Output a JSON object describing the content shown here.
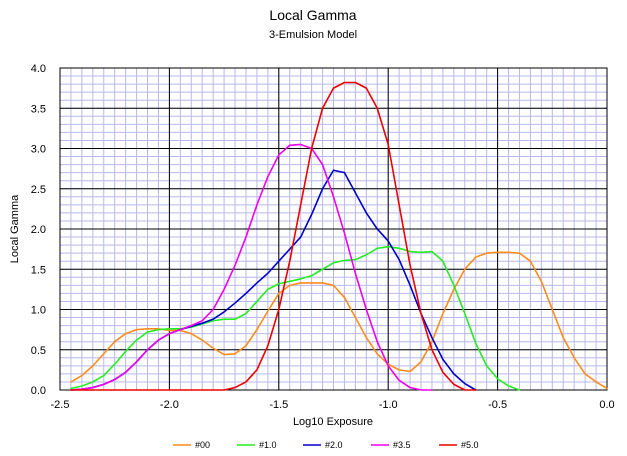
{
  "chart_data": {
    "type": "line",
    "title": "Local Gamma",
    "subtitle": "3-Emulsion Model",
    "xlabel": "Log10 Exposure",
    "ylabel": "Local Gamma",
    "xlim": [
      -2.5,
      0.0
    ],
    "ylim": [
      0.0,
      4.0
    ],
    "x_ticks": [
      "-2.5",
      "-2.0",
      "-1.5",
      "-1.0",
      "-0.5",
      "0.0"
    ],
    "y_ticks": [
      "0.0",
      "0.5",
      "1.0",
      "1.5",
      "2.0",
      "2.5",
      "3.0",
      "3.5",
      "4.0"
    ],
    "grid": true,
    "legend_position": "bottom",
    "series": [
      {
        "name": "#00",
        "color": "#ff8c1a",
        "points": [
          [
            -2.45,
            0.1
          ],
          [
            -2.4,
            0.18
          ],
          [
            -2.35,
            0.3
          ],
          [
            -2.3,
            0.45
          ],
          [
            -2.25,
            0.6
          ],
          [
            -2.2,
            0.7
          ],
          [
            -2.15,
            0.75
          ],
          [
            -2.1,
            0.76
          ],
          [
            -2.05,
            0.76
          ],
          [
            -2.0,
            0.74
          ],
          [
            -1.95,
            0.74
          ],
          [
            -1.9,
            0.7
          ],
          [
            -1.85,
            0.62
          ],
          [
            -1.8,
            0.52
          ],
          [
            -1.75,
            0.44
          ],
          [
            -1.7,
            0.45
          ],
          [
            -1.65,
            0.55
          ],
          [
            -1.6,
            0.75
          ],
          [
            -1.55,
            0.98
          ],
          [
            -1.5,
            1.2
          ],
          [
            -1.45,
            1.3
          ],
          [
            -1.4,
            1.33
          ],
          [
            -1.35,
            1.33
          ],
          [
            -1.3,
            1.33
          ],
          [
            -1.25,
            1.3
          ],
          [
            -1.2,
            1.15
          ],
          [
            -1.15,
            0.9
          ],
          [
            -1.1,
            0.65
          ],
          [
            -1.05,
            0.45
          ],
          [
            -1.0,
            0.32
          ],
          [
            -0.95,
            0.25
          ],
          [
            -0.9,
            0.23
          ],
          [
            -0.85,
            0.35
          ],
          [
            -0.8,
            0.6
          ],
          [
            -0.75,
            0.95
          ],
          [
            -0.7,
            1.25
          ],
          [
            -0.65,
            1.5
          ],
          [
            -0.6,
            1.65
          ],
          [
            -0.55,
            1.7
          ],
          [
            -0.5,
            1.71
          ],
          [
            -0.45,
            1.71
          ],
          [
            -0.4,
            1.7
          ],
          [
            -0.35,
            1.6
          ],
          [
            -0.3,
            1.35
          ],
          [
            -0.25,
            1.0
          ],
          [
            -0.2,
            0.65
          ],
          [
            -0.15,
            0.4
          ],
          [
            -0.1,
            0.2
          ],
          [
            -0.05,
            0.1
          ],
          [
            0.0,
            0.02
          ]
        ]
      },
      {
        "name": "#1.0",
        "color": "#22ee22",
        "points": [
          [
            -2.45,
            0.02
          ],
          [
            -2.4,
            0.05
          ],
          [
            -2.35,
            0.1
          ],
          [
            -2.3,
            0.18
          ],
          [
            -2.25,
            0.32
          ],
          [
            -2.2,
            0.48
          ],
          [
            -2.15,
            0.62
          ],
          [
            -2.1,
            0.72
          ],
          [
            -2.05,
            0.75
          ],
          [
            -2.0,
            0.76
          ],
          [
            -1.95,
            0.76
          ],
          [
            -1.9,
            0.78
          ],
          [
            -1.85,
            0.82
          ],
          [
            -1.8,
            0.86
          ],
          [
            -1.75,
            0.88
          ],
          [
            -1.7,
            0.88
          ],
          [
            -1.65,
            0.95
          ],
          [
            -1.6,
            1.1
          ],
          [
            -1.55,
            1.25
          ],
          [
            -1.5,
            1.32
          ],
          [
            -1.45,
            1.35
          ],
          [
            -1.4,
            1.38
          ],
          [
            -1.35,
            1.42
          ],
          [
            -1.3,
            1.5
          ],
          [
            -1.25,
            1.58
          ],
          [
            -1.2,
            1.61
          ],
          [
            -1.15,
            1.62
          ],
          [
            -1.1,
            1.68
          ],
          [
            -1.05,
            1.76
          ],
          [
            -1.0,
            1.78
          ],
          [
            -0.95,
            1.76
          ],
          [
            -0.9,
            1.72
          ],
          [
            -0.85,
            1.71
          ],
          [
            -0.8,
            1.72
          ],
          [
            -0.75,
            1.6
          ],
          [
            -0.7,
            1.3
          ],
          [
            -0.65,
            0.95
          ],
          [
            -0.6,
            0.58
          ],
          [
            -0.55,
            0.3
          ],
          [
            -0.5,
            0.14
          ],
          [
            -0.45,
            0.05
          ],
          [
            -0.4,
            0.0
          ]
        ]
      },
      {
        "name": "#2.0",
        "color": "#0000cc",
        "points": [
          [
            -2.45,
            0.0
          ],
          [
            -2.4,
            0.01
          ],
          [
            -2.35,
            0.03
          ],
          [
            -2.3,
            0.07
          ],
          [
            -2.25,
            0.13
          ],
          [
            -2.2,
            0.22
          ],
          [
            -2.15,
            0.35
          ],
          [
            -2.1,
            0.5
          ],
          [
            -2.05,
            0.62
          ],
          [
            -2.0,
            0.7
          ],
          [
            -1.95,
            0.75
          ],
          [
            -1.9,
            0.79
          ],
          [
            -1.85,
            0.83
          ],
          [
            -1.8,
            0.88
          ],
          [
            -1.75,
            0.97
          ],
          [
            -1.7,
            1.08
          ],
          [
            -1.65,
            1.2
          ],
          [
            -1.6,
            1.33
          ],
          [
            -1.55,
            1.45
          ],
          [
            -1.5,
            1.6
          ],
          [
            -1.45,
            1.75
          ],
          [
            -1.4,
            1.9
          ],
          [
            -1.35,
            2.18
          ],
          [
            -1.3,
            2.5
          ],
          [
            -1.25,
            2.73
          ],
          [
            -1.2,
            2.7
          ],
          [
            -1.15,
            2.45
          ],
          [
            -1.1,
            2.2
          ],
          [
            -1.05,
            2.0
          ],
          [
            -1.0,
            1.85
          ],
          [
            -0.95,
            1.62
          ],
          [
            -0.9,
            1.3
          ],
          [
            -0.85,
            0.95
          ],
          [
            -0.8,
            0.65
          ],
          [
            -0.75,
            0.38
          ],
          [
            -0.7,
            0.2
          ],
          [
            -0.65,
            0.08
          ],
          [
            -0.6,
            0.0
          ]
        ]
      },
      {
        "name": "#3.5",
        "color": "#ee00ee",
        "points": [
          [
            -2.45,
            0.0
          ],
          [
            -2.4,
            0.01
          ],
          [
            -2.35,
            0.03
          ],
          [
            -2.3,
            0.07
          ],
          [
            -2.25,
            0.13
          ],
          [
            -2.2,
            0.22
          ],
          [
            -2.15,
            0.35
          ],
          [
            -2.1,
            0.5
          ],
          [
            -2.05,
            0.62
          ],
          [
            -2.0,
            0.7
          ],
          [
            -1.95,
            0.75
          ],
          [
            -1.9,
            0.8
          ],
          [
            -1.85,
            0.86
          ],
          [
            -1.8,
            1.0
          ],
          [
            -1.75,
            1.25
          ],
          [
            -1.7,
            1.55
          ],
          [
            -1.65,
            1.9
          ],
          [
            -1.6,
            2.3
          ],
          [
            -1.55,
            2.65
          ],
          [
            -1.5,
            2.92
          ],
          [
            -1.45,
            3.04
          ],
          [
            -1.4,
            3.05
          ],
          [
            -1.35,
            3.0
          ],
          [
            -1.3,
            2.8
          ],
          [
            -1.25,
            2.4
          ],
          [
            -1.2,
            1.95
          ],
          [
            -1.15,
            1.45
          ],
          [
            -1.1,
            1.0
          ],
          [
            -1.05,
            0.6
          ],
          [
            -1.0,
            0.3
          ],
          [
            -0.95,
            0.12
          ],
          [
            -0.9,
            0.03
          ],
          [
            -0.85,
            0.0
          ],
          [
            -0.8,
            0.0
          ]
        ]
      },
      {
        "name": "#5.0",
        "color": "#ee0000",
        "points": [
          [
            -2.45,
            0.0
          ],
          [
            -2.0,
            0.0
          ],
          [
            -1.8,
            0.0
          ],
          [
            -1.75,
            0.0
          ],
          [
            -1.7,
            0.03
          ],
          [
            -1.65,
            0.1
          ],
          [
            -1.6,
            0.25
          ],
          [
            -1.55,
            0.55
          ],
          [
            -1.5,
            1.0
          ],
          [
            -1.45,
            1.6
          ],
          [
            -1.4,
            2.3
          ],
          [
            -1.35,
            3.0
          ],
          [
            -1.3,
            3.5
          ],
          [
            -1.25,
            3.75
          ],
          [
            -1.2,
            3.82
          ],
          [
            -1.15,
            3.82
          ],
          [
            -1.1,
            3.75
          ],
          [
            -1.05,
            3.5
          ],
          [
            -1.0,
            3.05
          ],
          [
            -0.95,
            2.3
          ],
          [
            -0.9,
            1.55
          ],
          [
            -0.85,
            0.95
          ],
          [
            -0.8,
            0.5
          ],
          [
            -0.75,
            0.22
          ],
          [
            -0.7,
            0.07
          ],
          [
            -0.65,
            0.0
          ],
          [
            -0.6,
            0.0
          ]
        ]
      }
    ]
  }
}
